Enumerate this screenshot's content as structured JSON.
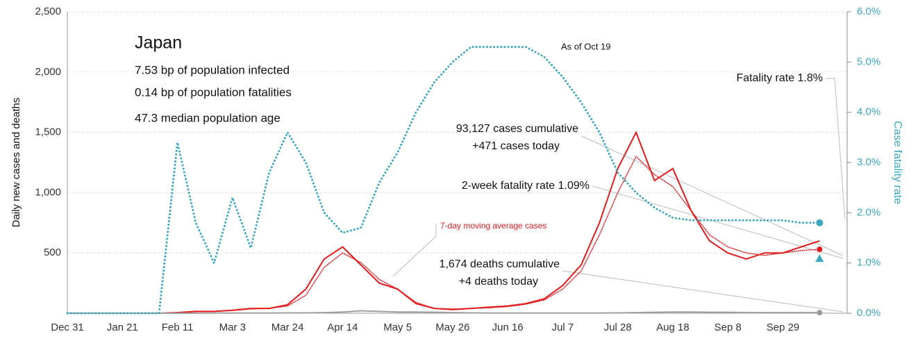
{
  "chart_data": {
    "type": "line",
    "categories": [
      "Dec 31",
      null,
      null,
      "Jan 21",
      null,
      null,
      "Feb 11",
      null,
      null,
      "Mar 3",
      null,
      null,
      "Mar 24",
      null,
      null,
      "Apr 14",
      null,
      null,
      "May 5",
      null,
      null,
      "May 26",
      null,
      null,
      "Jun 16",
      null,
      null,
      "Jul 7",
      null,
      null,
      "Jul 28",
      null,
      null,
      "Aug 18",
      null,
      null,
      "Sep 8",
      null,
      null,
      "Sep 29",
      null,
      null
    ],
    "series": [
      {
        "color": "#e31a1c",
        "style": "solid",
        "axis": "y",
        "values": [
          0,
          0,
          0,
          0,
          0,
          0,
          5,
          15,
          15,
          25,
          40,
          40,
          70,
          200,
          450,
          550,
          400,
          250,
          200,
          80,
          40,
          30,
          40,
          50,
          60,
          80,
          120,
          230,
          400,
          750,
          1200,
          1500,
          1100,
          1200,
          850,
          600,
          500,
          450,
          500,
          500,
          550,
          600
        ]
      },
      {
        "name": "7-day moving average cases",
        "color": "#e31a1c",
        "style": "dotted",
        "axis": "y",
        "values": [
          0,
          0,
          0,
          0,
          0,
          0,
          5,
          12,
          15,
          22,
          35,
          40,
          60,
          150,
          380,
          500,
          420,
          280,
          200,
          90,
          40,
          35,
          40,
          45,
          55,
          75,
          110,
          200,
          350,
          650,
          1000,
          1300,
          1150,
          1050,
          850,
          650,
          550,
          500,
          480,
          500,
          520,
          530
        ]
      },
      {
        "color": "#a0a0a0",
        "style": "solid",
        "axis": "y",
        "values": [
          0,
          0,
          0,
          0,
          0,
          0,
          0,
          0,
          1,
          1,
          2,
          2,
          3,
          3,
          5,
          10,
          20,
          15,
          10,
          10,
          8,
          5,
          3,
          2,
          1,
          1,
          1,
          1,
          1,
          2,
          3,
          5,
          8,
          10,
          10,
          8,
          8,
          6,
          5,
          5,
          5,
          5
        ]
      },
      {
        "color": "#3ba8bd",
        "style": "dotted",
        "axis": "y2",
        "values": [
          0,
          0,
          0,
          0,
          0,
          0,
          3.4,
          1.8,
          1.0,
          2.3,
          1.3,
          2.8,
          3.6,
          3.0,
          2.0,
          1.6,
          1.7,
          2.6,
          3.2,
          4.0,
          4.6,
          5.0,
          5.3,
          5.3,
          5.3,
          5.3,
          5.1,
          4.7,
          4.2,
          3.6,
          2.8,
          2.4,
          2.1,
          1.9,
          1.85,
          1.85,
          1.85,
          1.85,
          1.85,
          1.85,
          1.8,
          1.8
        ]
      }
    ],
    "two_week_fatality_rate": 1.09,
    "ylim": [
      0,
      2500
    ],
    "yticks": [
      500,
      {
        "value": 1000,
        "label": "1,000"
      },
      {
        "value": 1500,
        "label": "1,500"
      },
      {
        "value": 2000,
        "label": "2,000"
      },
      {
        "value": 2500,
        "label": "2,500"
      }
    ],
    "y2lim": [
      0,
      6
    ],
    "y2ticks": [
      {
        "value": 0,
        "label": "0.0%"
      },
      {
        "value": 1,
        "label": "1.0%"
      },
      {
        "value": 2,
        "label": "2.0%"
      },
      {
        "value": 3,
        "label": "3.0%"
      },
      {
        "value": 4,
        "label": "4.0%"
      },
      {
        "value": 5,
        "label": "5.0%"
      },
      {
        "value": 6,
        "label": "6.0%"
      }
    ],
    "ylabel": "Daily new cases and deaths",
    "y2label": "Case fatality rate",
    "grid": true,
    "title": "Japan",
    "annotations": [
      "7.53 bp of population infected",
      "0.14 bp of population fatalities",
      "47.3 median population age",
      "As of Oct 19",
      "Fatality rate 1.8%",
      "93,127 cases cumulative",
      "+471 cases today",
      "2-week fatality rate 1.09%",
      "7-day moving average cases",
      "1,674 deaths cumulative",
      "+4 deaths today"
    ]
  }
}
